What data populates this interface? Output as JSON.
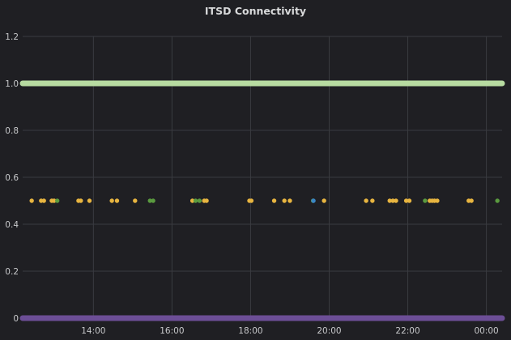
{
  "chart_data": {
    "type": "scatter",
    "title": "ITSD Connectivity",
    "xlabel": "",
    "ylabel": "",
    "x_ticks": [
      "14:00",
      "16:00",
      "18:00",
      "20:00",
      "22:00",
      "00:00"
    ],
    "x_tick_hours": [
      14,
      16,
      18,
      20,
      22,
      24
    ],
    "xlim": [
      12.2,
      24.4
    ],
    "y_ticks": [
      "0",
      "0.2",
      "0.4",
      "0.6",
      "0.8",
      "1.0",
      "1.2"
    ],
    "y_tick_values": [
      0,
      0.2,
      0.4,
      0.6,
      0.8,
      1.0,
      1.2
    ],
    "ylim": [
      0,
      1.2
    ],
    "grid": true,
    "legend": "none",
    "series": [
      {
        "color": "#b7dba1",
        "style": "dense-line",
        "x_range": [
          12.2,
          24.4
        ],
        "y": 1.0
      },
      {
        "color": "#6c4e96",
        "style": "dense-line",
        "x_range": [
          12.2,
          24.4
        ],
        "y": 0.0
      },
      {
        "color": "#e8b540",
        "style": "points",
        "x": [
          12.43,
          12.67,
          12.74,
          12.94,
          13.0,
          13.62,
          13.68,
          13.9,
          14.47,
          14.6,
          15.06,
          16.52,
          16.82,
          16.88,
          17.97,
          18.02,
          18.6,
          18.86,
          19.0,
          19.87,
          20.94,
          21.1,
          21.54,
          21.62,
          21.7,
          21.96,
          22.04,
          22.56,
          22.62,
          22.68,
          22.75,
          23.55,
          23.62
        ],
        "y": [
          0.5,
          0.5,
          0.5,
          0.5,
          0.5,
          0.5,
          0.5,
          0.5,
          0.5,
          0.5,
          0.5,
          0.5,
          0.5,
          0.5,
          0.5,
          0.5,
          0.5,
          0.5,
          0.5,
          0.5,
          0.5,
          0.5,
          0.5,
          0.5,
          0.5,
          0.5,
          0.5,
          0.5,
          0.5,
          0.5,
          0.5,
          0.5,
          0.5
        ]
      },
      {
        "color": "#5a9a3f",
        "style": "points",
        "x": [
          13.08,
          15.44,
          15.52,
          16.6,
          16.7,
          19.59,
          22.44,
          24.28
        ],
        "y": [
          0.5,
          0.5,
          0.5,
          0.5,
          0.5,
          0.5,
          0.5,
          0.5
        ]
      },
      {
        "color": "#3a86c6",
        "style": "points",
        "x": [
          19.6
        ],
        "y": [
          0.5
        ]
      }
    ]
  }
}
